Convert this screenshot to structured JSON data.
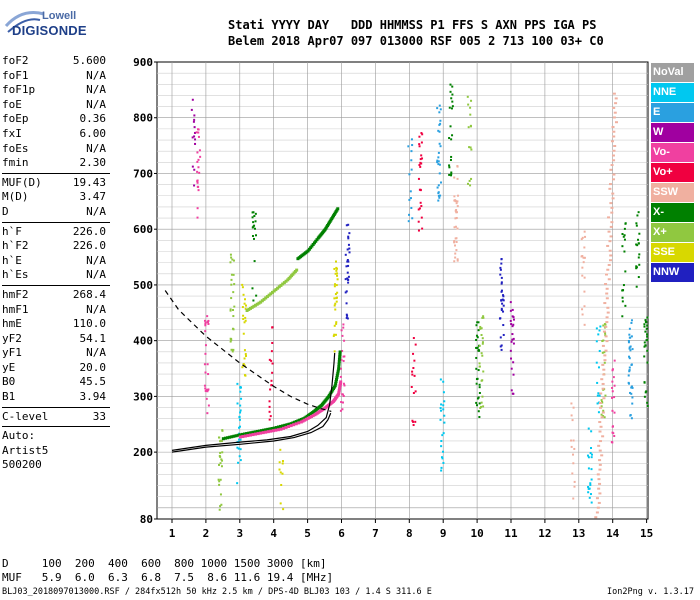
{
  "logo": {
    "line1": "Lowell",
    "line2": "DIGISONDE"
  },
  "header": {
    "labels": [
      "Stati",
      "YYYY",
      "DAY",
      "DDD",
      "HHMMSS",
      "P1",
      "FFS",
      "S",
      "AXN",
      "PPS",
      "IGA",
      "PS"
    ],
    "values": [
      "Belem",
      "2018",
      "Apr07",
      "097",
      "013000",
      "RSF",
      "005",
      "2",
      "713",
      "100",
      "03+",
      "C0"
    ]
  },
  "params": {
    "group1": [
      {
        "label": "foF2",
        "value": "5.600"
      },
      {
        "label": "foF1",
        "value": "N/A"
      },
      {
        "label": "foF1p",
        "value": "N/A"
      },
      {
        "label": "foE",
        "value": "N/A"
      },
      {
        "label": "foEp",
        "value": "0.36"
      },
      {
        "label": "fxI",
        "value": "6.00"
      },
      {
        "label": "foEs",
        "value": "N/A"
      },
      {
        "label": "fmin",
        "value": "2.30"
      }
    ],
    "group2": [
      {
        "label": "MUF(D)",
        "value": "19.43"
      },
      {
        "label": "M(D)",
        "value": "3.47"
      },
      {
        "label": "D",
        "value": "N/A"
      }
    ],
    "group3": [
      {
        "label": "h`F",
        "value": "226.0"
      },
      {
        "label": "h`F2",
        "value": "226.0"
      },
      {
        "label": "h`E",
        "value": "N/A"
      },
      {
        "label": "h`Es",
        "value": "N/A"
      }
    ],
    "group4": [
      {
        "label": "hmF2",
        "value": "268.4"
      },
      {
        "label": "hmF1",
        "value": "N/A"
      },
      {
        "label": "hmE",
        "value": "110.0"
      },
      {
        "label": "yF2",
        "value": "54.1"
      },
      {
        "label": "yF1",
        "value": "N/A"
      },
      {
        "label": "yE",
        "value": "20.0"
      },
      {
        "label": "B0",
        "value": "45.5"
      },
      {
        "label": "B1",
        "value": "3.94"
      }
    ],
    "clevel": {
      "label": "C-level",
      "value": "33"
    },
    "auto": [
      "Auto:",
      "Artist5",
      "500200"
    ]
  },
  "legend": [
    {
      "label": "NoVal",
      "color": "#a0a0a0"
    },
    {
      "label": "NNE",
      "color": "#00c8f0"
    },
    {
      "label": "E",
      "color": "#2aa0e0"
    },
    {
      "label": "W",
      "color": "#a000a0"
    },
    {
      "label": "Vo-",
      "color": "#f040a0"
    },
    {
      "label": "Vo+",
      "color": "#f00040"
    },
    {
      "label": "SSW",
      "color": "#f0b0a0"
    },
    {
      "label": "X-",
      "color": "#008000"
    },
    {
      "label": "X+",
      "color": "#90c840"
    },
    {
      "label": "SSE",
      "color": "#d8d800"
    },
    {
      "label": "NNW",
      "color": "#2020c0"
    }
  ],
  "dtable": {
    "line1": "D     100  200  400  600  800 1000 1500 3000 [km]",
    "line2": "MUF   5.9  6.0  6.3  6.8  7.5  8.6 11.6 19.4 [MHz]"
  },
  "footer": {
    "left": "BLJ03_2018097013000.RSF / 284fx512h 50 kHz 2.5 km / DPS-4D BLJ03 103 / 1.4 S 311.6 E",
    "right": "Ion2Png v. 1.3.17"
  },
  "chart_data": {
    "type": "scatter",
    "title": "",
    "xlabel": "",
    "ylabel": "",
    "xlim": [
      0.8,
      15.2
    ],
    "ylim": [
      80,
      900
    ],
    "x_ticks": [
      "1",
      "2",
      "3",
      "4",
      "5",
      "6",
      "7",
      "8",
      "9",
      "10",
      "11",
      "12",
      "13",
      "14",
      "15"
    ],
    "y_ticks": [
      "80",
      "200",
      "300",
      "400",
      "500",
      "600",
      "700",
      "800",
      "900"
    ],
    "grid": true,
    "lines": [
      {
        "name": "ordinary-trace",
        "color": "#000000",
        "dash": false,
        "points": [
          [
            1.0,
            203
          ],
          [
            2.0,
            212
          ],
          [
            3.0,
            218
          ],
          [
            3.8,
            222
          ],
          [
            4.5,
            228
          ],
          [
            5.0,
            237
          ],
          [
            5.3,
            248
          ],
          [
            5.55,
            262
          ],
          [
            5.65,
            285
          ],
          [
            5.72,
            320
          ],
          [
            5.78,
            360
          ],
          [
            5.8,
            378
          ]
        ]
      },
      {
        "name": "profile-lower",
        "color": "#000000",
        "dash": false,
        "points": [
          [
            1.0,
            200
          ],
          [
            2.0,
            209
          ],
          [
            3.0,
            214
          ],
          [
            4.0,
            220
          ],
          [
            4.6,
            226
          ],
          [
            5.1,
            235
          ],
          [
            5.45,
            246
          ],
          [
            5.6,
            258
          ],
          [
            5.68,
            270
          ]
        ]
      },
      {
        "name": "extraordinary-fit",
        "color": "#000000",
        "dash": true,
        "points": [
          [
            0.8,
            490
          ],
          [
            1.2,
            455
          ],
          [
            2.0,
            408
          ],
          [
            3.0,
            360
          ],
          [
            4.0,
            318
          ],
          [
            4.5,
            300
          ],
          [
            5.0,
            286
          ],
          [
            5.4,
            278
          ],
          [
            5.7,
            273
          ]
        ]
      }
    ],
    "traces": [
      {
        "name": "o-trace-green",
        "color": "#008000",
        "points": [
          [
            2.5,
            225
          ],
          [
            3.0,
            232
          ],
          [
            3.5,
            238
          ],
          [
            4.0,
            244
          ],
          [
            4.5,
            252
          ],
          [
            4.9,
            262
          ],
          [
            5.2,
            275
          ],
          [
            5.4,
            285
          ],
          [
            5.6,
            300
          ],
          [
            5.8,
            320
          ],
          [
            5.9,
            350
          ],
          [
            5.95,
            385
          ]
        ]
      },
      {
        "name": "o-trace-pink",
        "color": "#f040a0",
        "points": [
          [
            3.0,
            228
          ],
          [
            3.6,
            235
          ],
          [
            4.2,
            242
          ],
          [
            4.8,
            255
          ],
          [
            5.2,
            268
          ],
          [
            5.5,
            280
          ],
          [
            5.75,
            292
          ],
          [
            5.9,
            305
          ],
          [
            5.97,
            330
          ]
        ]
      },
      {
        "name": "f2-echo-upper",
        "color": "#008000",
        "points": [
          [
            4.7,
            548
          ],
          [
            5.0,
            562
          ],
          [
            5.3,
            585
          ],
          [
            5.5,
            600
          ],
          [
            5.7,
            620
          ],
          [
            5.9,
            640
          ]
        ]
      },
      {
        "name": "f2-echo-upper-2",
        "color": "#90c840",
        "points": [
          [
            3.2,
            455
          ],
          [
            3.6,
            470
          ],
          [
            4.0,
            490
          ],
          [
            4.4,
            510
          ],
          [
            4.7,
            530
          ]
        ]
      }
    ]
  }
}
